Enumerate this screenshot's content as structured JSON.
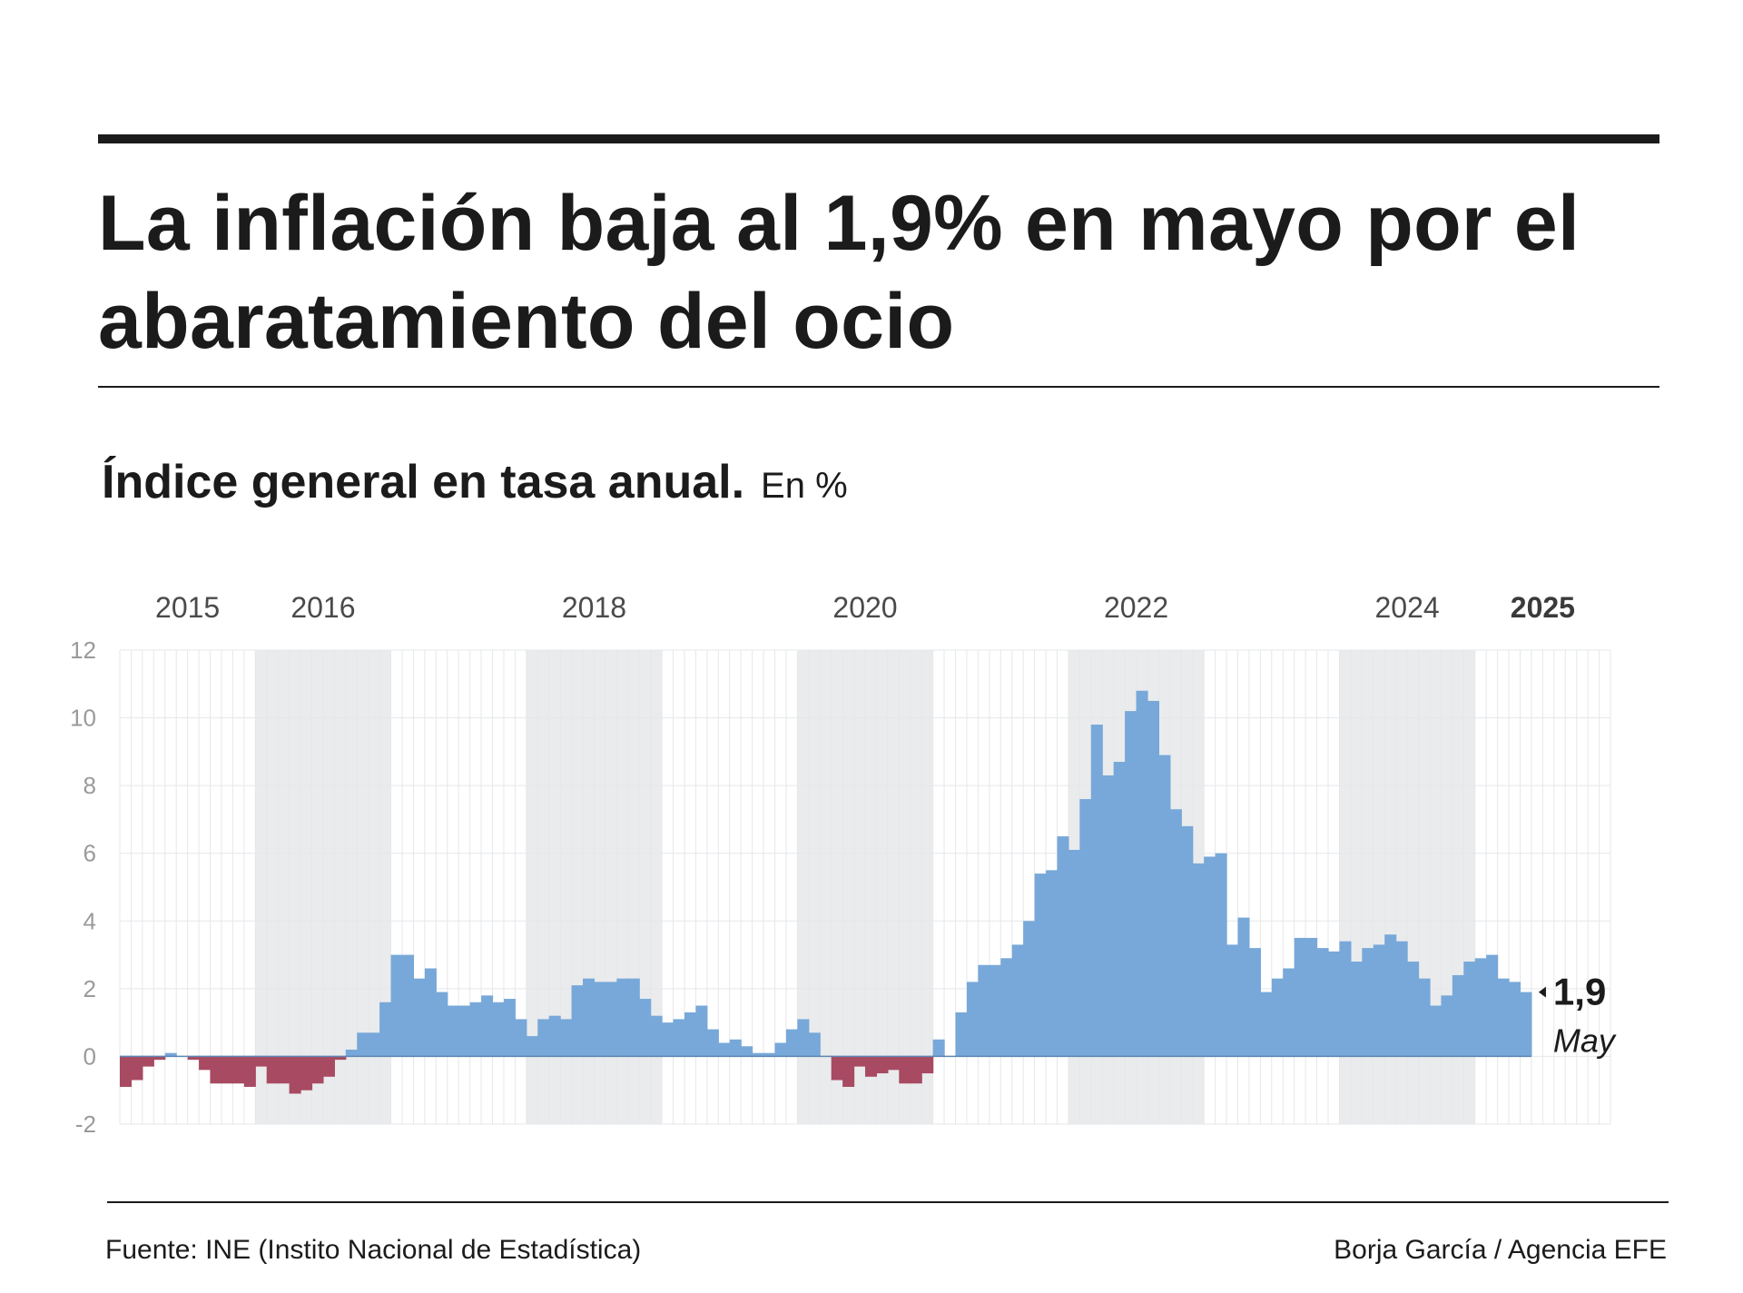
{
  "headline": "La inflación baja al 1,9% en mayo por el abaratamiento del ocio",
  "subtitle": {
    "main": "Índice general en tasa anual.",
    "unit": "En %"
  },
  "source": "Fuente: INE (Instito Nacional de Estadística)",
  "credit": "Borja García / Agencia EFE",
  "colors": {
    "positive": "#77a8d9",
    "negative": "#a84a62",
    "year_band": "#eaebed",
    "grid": "#e6e7ea",
    "axis_text": "#9a9a9a"
  },
  "chart_data": {
    "type": "bar",
    "ylim": [
      -2,
      12
    ],
    "yticks": [
      -2,
      0,
      2,
      4,
      6,
      8,
      10,
      12
    ],
    "grid": true,
    "shaded_years": [
      2016,
      2018,
      2020,
      2022,
      2024
    ],
    "year_labels": [
      {
        "year": 2015,
        "label": "2015"
      },
      {
        "year": 2016,
        "label": "2016"
      },
      {
        "year": 2018,
        "label": "2018"
      },
      {
        "year": 2020,
        "label": "2020"
      },
      {
        "year": 2022,
        "label": "2022"
      },
      {
        "year": 2024,
        "label": "2024"
      },
      {
        "year": 2025,
        "label": "2025",
        "bold": true
      }
    ],
    "start_month": "2015-01",
    "end_month": "2025-05",
    "values": [
      -0.9,
      -0.7,
      -0.3,
      -0.1,
      0.1,
      0.0,
      -0.1,
      -0.4,
      -0.8,
      -0.8,
      -0.8,
      -0.9,
      -0.3,
      -0.8,
      -0.8,
      -1.1,
      -1.0,
      -0.8,
      -0.6,
      -0.1,
      0.2,
      0.7,
      0.7,
      1.6,
      3.0,
      3.0,
      2.3,
      2.6,
      1.9,
      1.5,
      1.5,
      1.6,
      1.8,
      1.6,
      1.7,
      1.1,
      0.6,
      1.1,
      1.2,
      1.1,
      2.1,
      2.3,
      2.2,
      2.2,
      2.3,
      2.3,
      1.7,
      1.2,
      1.0,
      1.1,
      1.3,
      1.5,
      0.8,
      0.4,
      0.5,
      0.3,
      0.1,
      0.1,
      0.4,
      0.8,
      1.1,
      0.7,
      0.0,
      -0.7,
      -0.9,
      -0.3,
      -0.6,
      -0.5,
      -0.4,
      -0.8,
      -0.8,
      -0.5,
      0.5,
      0.0,
      1.3,
      2.2,
      2.7,
      2.7,
      2.9,
      3.3,
      4.0,
      5.4,
      5.5,
      6.5,
      6.1,
      7.6,
      9.8,
      8.3,
      8.7,
      10.2,
      10.8,
      10.5,
      8.9,
      7.3,
      6.8,
      5.7,
      5.9,
      6.0,
      3.3,
      4.1,
      3.2,
      1.9,
      2.3,
      2.6,
      3.5,
      3.5,
      3.2,
      3.1,
      3.4,
      2.8,
      3.2,
      3.3,
      3.6,
      3.4,
      2.8,
      2.3,
      1.5,
      1.8,
      2.4,
      2.8,
      2.9,
      3.0,
      2.3,
      2.2,
      1.9
    ],
    "last_value_label": "1,9",
    "last_month_label": "May"
  }
}
